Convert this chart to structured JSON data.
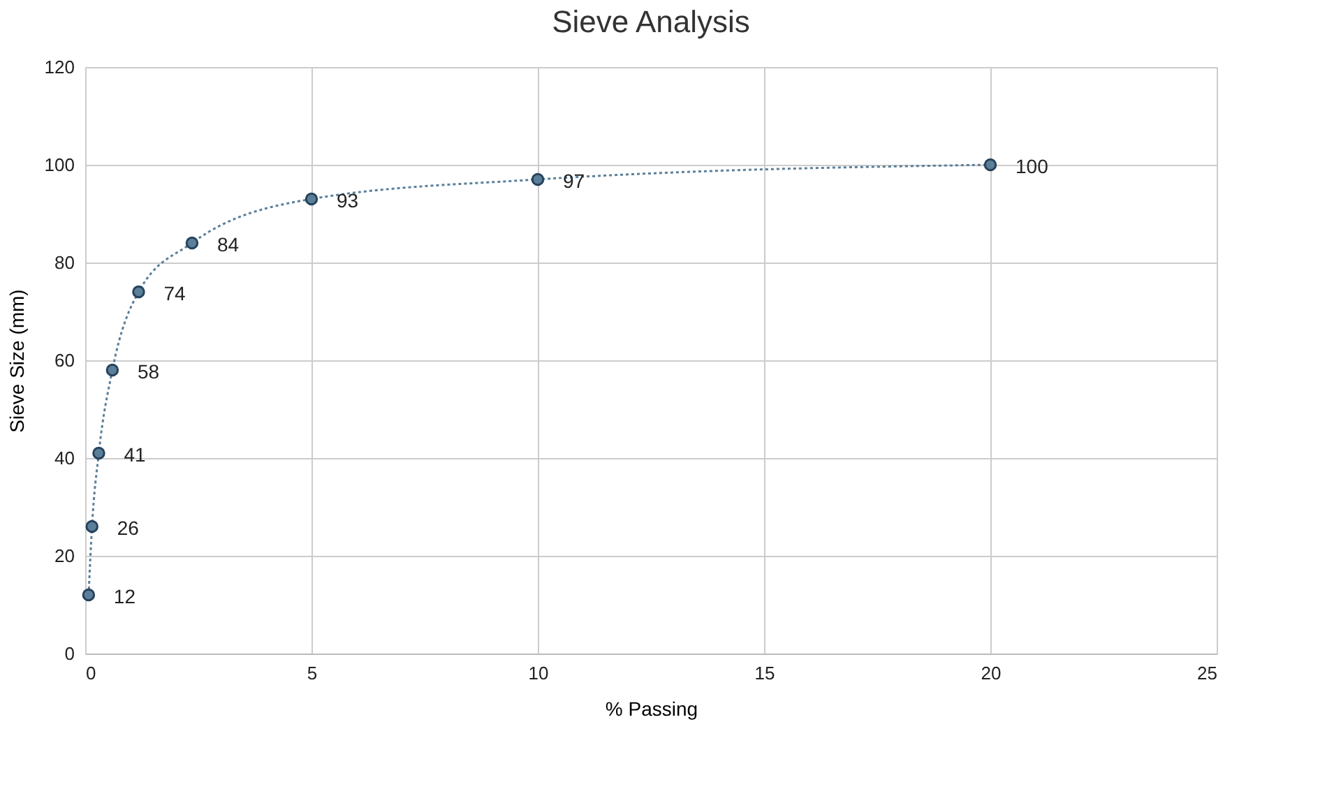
{
  "chart_data": {
    "type": "line",
    "title": "Sieve Analysis",
    "xlabel": "% Passing",
    "ylabel": "Sieve Size (mm)",
    "x": [
      0.075,
      0.15,
      0.3,
      0.6,
      1.18,
      2.36,
      5,
      10,
      20
    ],
    "series": [
      {
        "color": "#5b7f99",
        "values": [
          12,
          26,
          41,
          58,
          74,
          84,
          93,
          97,
          100
        ]
      }
    ],
    "xlim": [
      0,
      25
    ],
    "xticks": [
      0,
      5,
      10,
      15,
      20,
      25
    ],
    "ylim": [
      0,
      120
    ],
    "yticks": [
      0,
      20,
      40,
      60,
      80,
      100,
      120
    ],
    "grid": true,
    "marker": "circle",
    "line_style": "dotted",
    "data_labels": true
  }
}
